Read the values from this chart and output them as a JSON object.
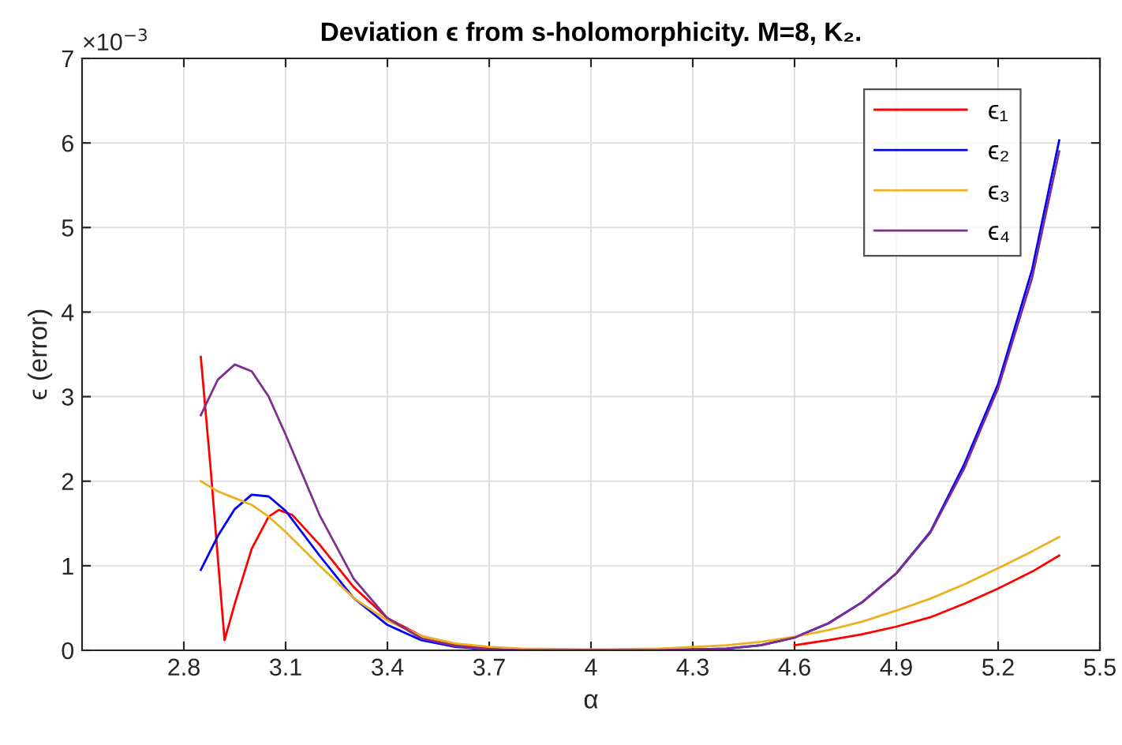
{
  "chart_data": {
    "type": "line",
    "title": "Deviation ϵ from s-holomorphicity. M=8, K₂.",
    "xlabel": "α",
    "ylabel": "ϵ (error)",
    "annotations": [
      "×10$^{−3}$"
    ],
    "x": [
      2.85,
      2.9,
      2.95,
      3.0,
      3.05,
      3.1,
      3.2,
      3.3,
      3.4,
      3.5,
      3.6,
      3.7,
      3.8,
      4.0,
      4.2,
      4.4,
      4.5,
      4.6,
      4.7,
      4.8,
      4.9,
      5.0,
      5.1,
      5.2,
      5.3,
      5.38
    ],
    "series": [
      {
        "name": "ϵ₁",
        "color": "#ff0000",
        "x": [
          2.85,
          2.88,
          2.9,
          2.92,
          2.95,
          3.0,
          3.05,
          3.08,
          3.12,
          3.2,
          3.3,
          3.4,
          3.5,
          3.6,
          3.7,
          3.8,
          4.0,
          4.2,
          4.4,
          4.6,
          4.7,
          4.8,
          4.9,
          5.0,
          5.1,
          5.2,
          5.3,
          5.38
        ],
        "values": [
          3.47,
          2.1,
          1.1,
          0.12,
          0.55,
          1.2,
          1.58,
          1.66,
          1.6,
          1.25,
          0.75,
          0.38,
          0.17,
          0.07,
          0.03,
          0.01,
          0,
          0,
          null,
          0.06,
          0.12,
          0.19,
          0.28,
          0.39,
          0.55,
          0.73,
          0.93,
          1.12
        ]
      },
      {
        "name": "ϵ₂",
        "color": "#0000ff",
        "values": [
          0.95,
          1.35,
          1.67,
          1.84,
          1.82,
          1.65,
          1.12,
          0.62,
          0.3,
          0.12,
          0.04,
          0.01,
          0,
          0,
          0,
          0.02,
          0.06,
          0.15,
          0.32,
          0.57,
          0.91,
          1.4,
          2.2,
          3.15,
          4.5,
          6.03
        ]
      },
      {
        "name": "ϵ₃",
        "color": "#edb120",
        "values": [
          2.0,
          1.88,
          1.8,
          1.72,
          1.58,
          1.4,
          1.0,
          0.62,
          0.35,
          0.17,
          0.08,
          0.04,
          0.02,
          0.01,
          0.02,
          0.06,
          0.1,
          0.16,
          0.24,
          0.34,
          0.47,
          0.61,
          0.78,
          0.97,
          1.17,
          1.34
        ]
      },
      {
        "name": "ϵ₄",
        "color": "#7e2f8e",
        "values": [
          2.78,
          3.2,
          3.38,
          3.3,
          3.0,
          2.55,
          1.6,
          0.85,
          0.38,
          0.14,
          0.05,
          0.01,
          0,
          0,
          0,
          0.02,
          0.06,
          0.15,
          0.32,
          0.57,
          0.91,
          1.39,
          2.15,
          3.1,
          4.4,
          5.9
        ]
      }
    ],
    "xlim": [
      2.5,
      5.5
    ],
    "xticks": [
      2.8,
      3.1,
      3.4,
      3.7,
      4,
      4.3,
      4.6,
      4.9,
      5.2,
      5.5
    ],
    "ylim": [
      0,
      7
    ],
    "yticks": [
      0,
      1,
      2,
      3,
      4,
      5,
      6,
      7
    ],
    "grid": true,
    "legend": "top right",
    "line_style": "solid",
    "marker": "none"
  }
}
